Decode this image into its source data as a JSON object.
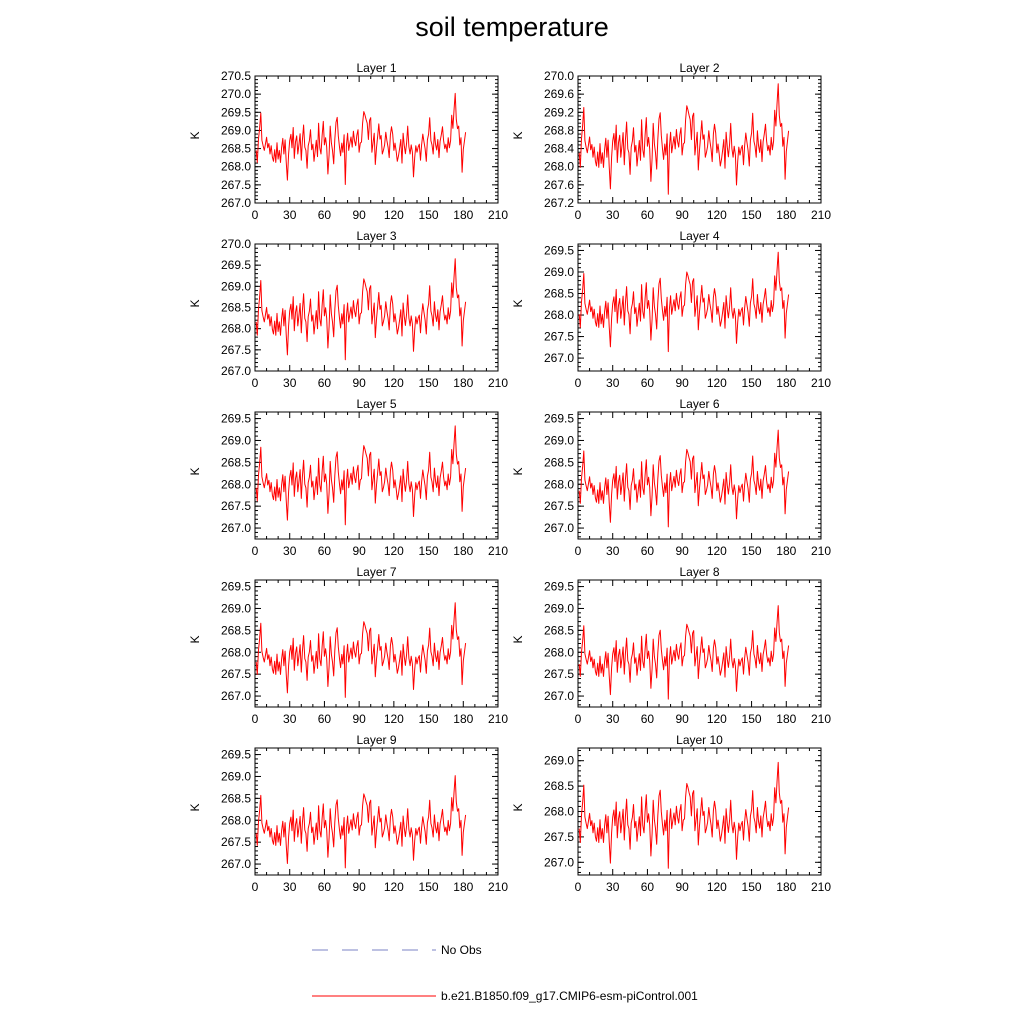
{
  "figure": {
    "title": "soil temperature"
  },
  "legend": {
    "placement": "bottom",
    "entries": [
      {
        "label": "No Obs",
        "color": "#7b83c4",
        "style": "dashed"
      },
      {
        "label": "b.e21.B1850.f09_g17.CMIP6-esm-piControl.001",
        "color": "#ff0000",
        "style": "solid"
      }
    ]
  },
  "chart_data": [
    {
      "type": "line",
      "title": "Layer 1",
      "ylabel": "K",
      "xlim": [
        0,
        210
      ],
      "ylim": [
        267.0,
        270.5
      ],
      "xticks": [
        0,
        30,
        60,
        90,
        120,
        150,
        180,
        210
      ],
      "yticks": [
        "267.0",
        "267.5",
        "268.0",
        "268.5",
        "269.0",
        "269.5",
        "270.0",
        "270.5"
      ],
      "series": [
        {
          "color": "#ff0000",
          "offset": 0.0,
          "scale": 1.0
        }
      ]
    },
    {
      "type": "line",
      "title": "Layer 2",
      "ylabel": "K",
      "xlim": [
        0,
        210
      ],
      "ylim": [
        267.2,
        270.0
      ],
      "xticks": [
        0,
        30,
        60,
        90,
        120,
        150,
        180,
        210
      ],
      "yticks": [
        "267.2",
        "267.6",
        "268.0",
        "268.4",
        "268.8",
        "269.2",
        "269.6",
        "270.0"
      ],
      "series": [
        {
          "color": "#ff0000",
          "offset": -0.15,
          "scale": 0.97
        }
      ]
    },
    {
      "type": "line",
      "title": "Layer 3",
      "ylabel": "K",
      "xlim": [
        0,
        210
      ],
      "ylim": [
        267.0,
        270.0
      ],
      "xticks": [
        0,
        30,
        60,
        90,
        120,
        150,
        180,
        210
      ],
      "yticks": [
        "267.0",
        "267.5",
        "268.0",
        "268.5",
        "269.0",
        "269.5",
        "270.0"
      ],
      "series": [
        {
          "color": "#ff0000",
          "offset": -0.3,
          "scale": 0.95
        }
      ]
    },
    {
      "type": "line",
      "title": "Layer 4",
      "ylabel": "K",
      "xlim": [
        0,
        210
      ],
      "ylim": [
        266.7,
        269.65
      ],
      "xticks": [
        0,
        30,
        60,
        90,
        120,
        150,
        180,
        210
      ],
      "yticks": [
        "267.0",
        "267.5",
        "268.0",
        "268.5",
        "269.0",
        "269.5"
      ],
      "series": [
        {
          "color": "#ff0000",
          "offset": -0.45,
          "scale": 0.92
        }
      ]
    },
    {
      "type": "line",
      "title": "Layer 5",
      "ylabel": "K",
      "xlim": [
        0,
        210
      ],
      "ylim": [
        266.75,
        269.65
      ],
      "xticks": [
        0,
        30,
        60,
        90,
        120,
        150,
        180,
        210
      ],
      "yticks": [
        "267.0",
        "267.5",
        "268.0",
        "268.5",
        "269.0",
        "269.5"
      ],
      "series": [
        {
          "color": "#ff0000",
          "offset": -0.55,
          "scale": 0.9
        }
      ]
    },
    {
      "type": "line",
      "title": "Layer 6",
      "ylabel": "K",
      "xlim": [
        0,
        210
      ],
      "ylim": [
        266.75,
        269.65
      ],
      "xticks": [
        0,
        30,
        60,
        90,
        120,
        150,
        180,
        210
      ],
      "yticks": [
        "267.0",
        "267.5",
        "268.0",
        "268.5",
        "269.0",
        "269.5"
      ],
      "series": [
        {
          "color": "#ff0000",
          "offset": -0.62,
          "scale": 0.88
        }
      ]
    },
    {
      "type": "line",
      "title": "Layer 7",
      "ylabel": "K",
      "xlim": [
        0,
        210
      ],
      "ylim": [
        266.75,
        269.65
      ],
      "xticks": [
        0,
        30,
        60,
        90,
        120,
        150,
        180,
        210
      ],
      "yticks": [
        "267.0",
        "267.5",
        "268.0",
        "268.5",
        "269.0",
        "269.5"
      ],
      "series": [
        {
          "color": "#ff0000",
          "offset": -0.7,
          "scale": 0.86
        }
      ]
    },
    {
      "type": "line",
      "title": "Layer 8",
      "ylabel": "K",
      "xlim": [
        0,
        210
      ],
      "ylim": [
        266.75,
        269.65
      ],
      "xticks": [
        0,
        30,
        60,
        90,
        120,
        150,
        180,
        210
      ],
      "yticks": [
        "267.0",
        "267.5",
        "268.0",
        "268.5",
        "269.0",
        "269.5"
      ],
      "series": [
        {
          "color": "#ff0000",
          "offset": -0.75,
          "scale": 0.85
        }
      ]
    },
    {
      "type": "line",
      "title": "Layer 9",
      "ylabel": "K",
      "xlim": [
        0,
        210
      ],
      "ylim": [
        266.75,
        269.65
      ],
      "xticks": [
        0,
        30,
        60,
        90,
        120,
        150,
        180,
        210
      ],
      "yticks": [
        "267.0",
        "267.5",
        "268.0",
        "268.5",
        "269.0",
        "269.5"
      ],
      "series": [
        {
          "color": "#ff0000",
          "offset": -0.78,
          "scale": 0.84
        }
      ]
    },
    {
      "type": "line",
      "title": "Layer 10",
      "ylabel": "K",
      "xlim": [
        0,
        210
      ],
      "ylim": [
        266.75,
        269.25
      ],
      "xticks": [
        0,
        30,
        60,
        90,
        120,
        150,
        180,
        210
      ],
      "yticks": [
        "267.0",
        "267.5",
        "268.0",
        "268.5",
        "269.0"
      ],
      "series": [
        {
          "color": "#ff0000",
          "offset": -0.82,
          "scale": 0.83
        }
      ]
    }
  ],
  "base_series": {
    "x_start": 1,
    "x_step": 1,
    "values": [
      268.45,
      268.12,
      268.77,
      269.06,
      269.48,
      268.73,
      268.58,
      268.45,
      268.62,
      268.81,
      268.52,
      268.64,
      268.35,
      268.58,
      268.26,
      268.15,
      268.47,
      268.12,
      268.66,
      268.21,
      268.45,
      268.12,
      268.52,
      268.78,
      268.35,
      268.74,
      268.14,
      267.63,
      268.35,
      268.72,
      268.89,
      268.52,
      269.08,
      268.23,
      268.68,
      268.85,
      268.35,
      268.62,
      268.91,
      268.18,
      268.73,
      269.15,
      268.54,
      268.45,
      267.96,
      268.58,
      268.72,
      269.02,
      268.47,
      268.62,
      268.15,
      268.45,
      268.73,
      268.28,
      269.2,
      268.52,
      268.35,
      268.85,
      269.25,
      268.6,
      268.8,
      268.54,
      267.8,
      268.33,
      269.12,
      268.65,
      268.45,
      268.08,
      268.75,
      269.22,
      269.36,
      268.85,
      268.54,
      268.3,
      268.65,
      268.4,
      268.88,
      267.51,
      268.58,
      268.92,
      268.45,
      268.65,
      268.82,
      268.54,
      268.98,
      268.72,
      268.58,
      268.86,
      269.02,
      268.4,
      268.65,
      268.68,
      269.2,
      269.52,
      269.43,
      269.3,
      269.2,
      268.75,
      269.28,
      269.35,
      268.4,
      268.65,
      268.92,
      268.06,
      268.52,
      268.85,
      269.18,
      268.76,
      268.86,
      268.35,
      268.45,
      268.6,
      268.95,
      268.72,
      268.53,
      268.25,
      268.88,
      269.1,
      268.9,
      268.45,
      268.65,
      268.42,
      268.15,
      268.3,
      268.5,
      268.75,
      268.1,
      268.92,
      268.58,
      268.36,
      268.65,
      269.12,
      268.55,
      268.35,
      268.6,
      268.4,
      267.72,
      268.25,
      268.58,
      268.4,
      268.55,
      268.62,
      268.18,
      268.6,
      268.9,
      268.7,
      268.5,
      268.15,
      268.74,
      268.9,
      269.35,
      268.72,
      268.6,
      268.35,
      268.95,
      268.62,
      268.46,
      268.75,
      268.25,
      268.7,
      268.88,
      269.1,
      268.72,
      268.5,
      268.62,
      268.4,
      268.8,
      268.52,
      268.72,
      269.42,
      269.06,
      269.55,
      270.02,
      269.3,
      269.05,
      269.12,
      268.6,
      268.8,
      267.85,
      268.48,
      268.7,
      268.95
    ]
  }
}
